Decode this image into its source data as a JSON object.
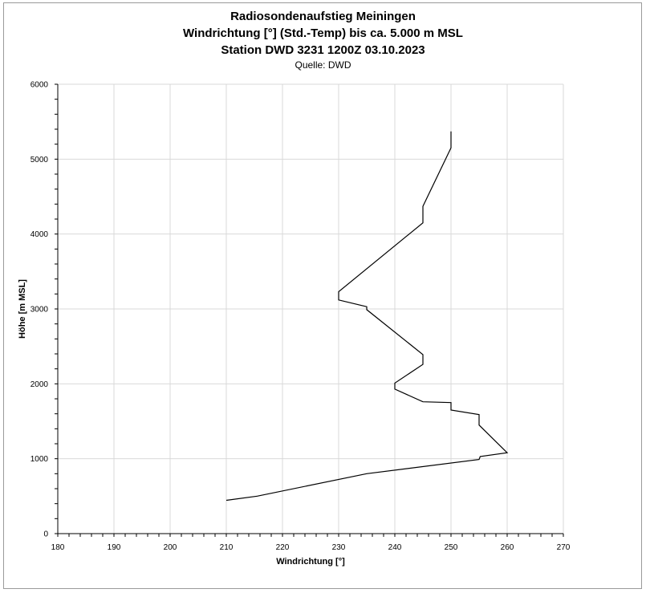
{
  "chart_data": {
    "type": "line",
    "title": "Radiosondenaufstieg Meiningen",
    "subtitle_1": "Windrichtung [°] (Std.-Temp) bis ca. 5.000 m MSL",
    "subtitle_2": "Station DWD 3231 1200Z 03.10.2023",
    "source": "Quelle: DWD",
    "xlabel": "Windrichtung [°]",
    "ylabel": "Höhe [m MSL]",
    "xlim": [
      180,
      270
    ],
    "ylim": [
      0,
      6000
    ],
    "xticks": [
      "180",
      "190",
      "200",
      "210",
      "220",
      "230",
      "240",
      "250",
      "260",
      "270"
    ],
    "yticks": [
      "0",
      "1000",
      "2000",
      "3000",
      "4000",
      "5000",
      "6000"
    ],
    "grid": true,
    "legend": "none",
    "line_color": "#000000",
    "series": [
      {
        "x": [
          210,
          215.5,
          235,
          255,
          255.2,
          260,
          255,
          255,
          250,
          250,
          245,
          240,
          240,
          245,
          245,
          235,
          235,
          230,
          230,
          245,
          245,
          250,
          250
        ],
        "y": [
          445,
          500,
          800,
          990,
          1030,
          1080,
          1450,
          1590,
          1650,
          1750,
          1760,
          1930,
          2010,
          2260,
          2390,
          2990,
          3030,
          3120,
          3230,
          4150,
          4370,
          5150,
          5370
        ]
      }
    ]
  }
}
